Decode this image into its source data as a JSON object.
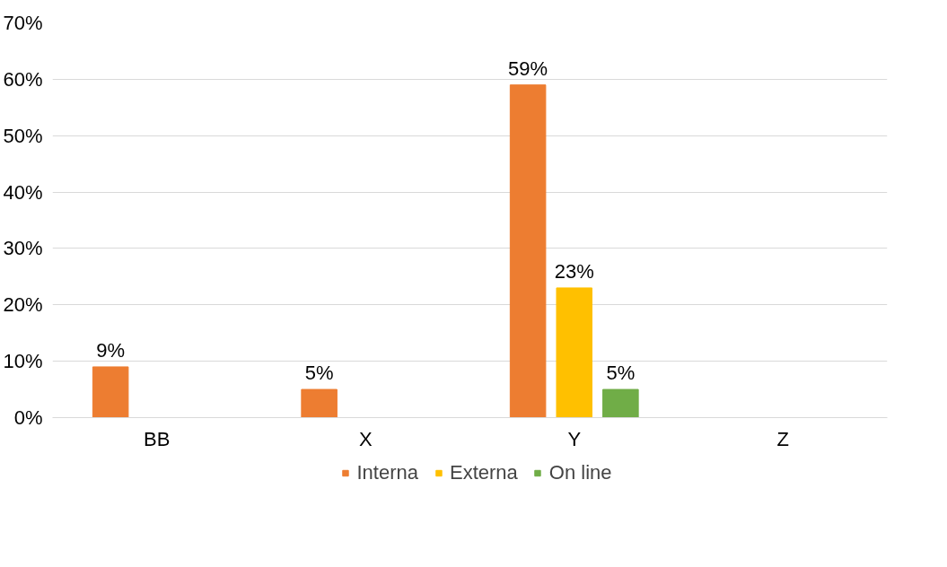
{
  "chart_data": {
    "type": "bar",
    "categories": [
      "BB",
      "X",
      "Y",
      "Z"
    ],
    "series": [
      {
        "name": "Interna",
        "color": "#ed7d31",
        "values": [
          9,
          5,
          59,
          null
        ],
        "value_labels": [
          "9%",
          "5%",
          "59%",
          null
        ]
      },
      {
        "name": "Externa",
        "color": "#ffc000",
        "values": [
          null,
          null,
          23,
          null
        ],
        "value_labels": [
          null,
          null,
          "23%",
          null
        ]
      },
      {
        "name": "On line",
        "color": "#70ad47",
        "values": [
          null,
          null,
          5,
          null
        ],
        "value_labels": [
          null,
          null,
          "5%",
          null
        ]
      }
    ],
    "ylim": [
      0,
      70
    ],
    "yticks": [
      {
        "value": 0,
        "label": "0%"
      },
      {
        "value": 10,
        "label": "10%"
      },
      {
        "value": 20,
        "label": "20%"
      },
      {
        "value": 30,
        "label": "30%"
      },
      {
        "value": 40,
        "label": "40%"
      },
      {
        "value": 50,
        "label": "50%"
      },
      {
        "value": 60,
        "label": "60%"
      },
      {
        "value": 70,
        "label": "70%"
      }
    ],
    "grid": "y",
    "legend": "bottom"
  }
}
